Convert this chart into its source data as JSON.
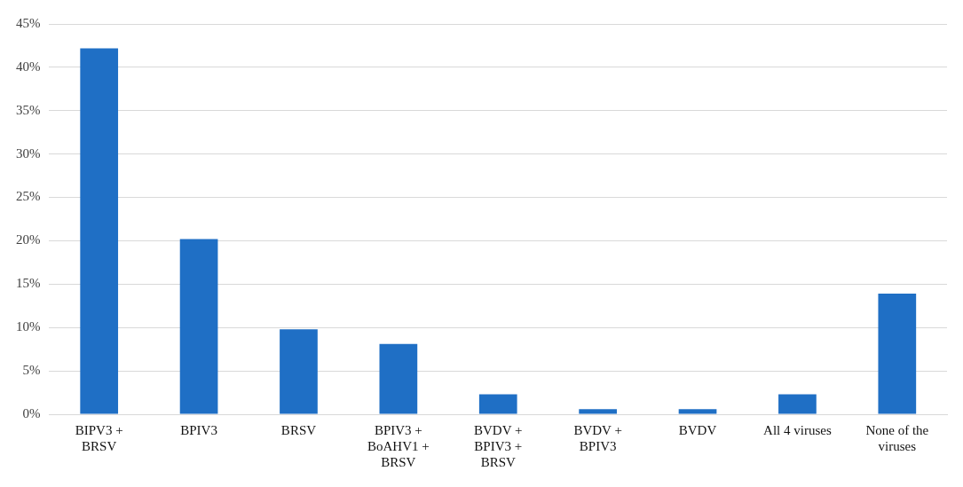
{
  "chart_data": {
    "type": "bar",
    "categories": [
      "BIPV3 + BRSV",
      "BPIV3",
      "BRSV",
      "BPIV3 + BoAHV1 + BRSV",
      "BVDV + BPIV3 + BRSV",
      "BVDV + BPIV3",
      "BVDV",
      "All 4 viruses",
      "None of the viruses"
    ],
    "values": [
      42.2,
      20.2,
      9.8,
      8.1,
      2.3,
      0.6,
      0.6,
      2.3,
      13.9
    ],
    "color": "#1f6fc5",
    "ylim": [
      0,
      45
    ],
    "yticks": [
      {
        "value": 0,
        "label": "0%"
      },
      {
        "value": 5,
        "label": "5%"
      },
      {
        "value": 10,
        "label": "10%"
      },
      {
        "value": 15,
        "label": "15%"
      },
      {
        "value": 20,
        "label": "20%"
      },
      {
        "value": 25,
        "label": "25%"
      },
      {
        "value": 30,
        "label": "30%"
      },
      {
        "value": 35,
        "label": "35%"
      },
      {
        "value": 40,
        "label": "40%"
      },
      {
        "value": 45,
        "label": "45%"
      }
    ],
    "grid": "y"
  }
}
